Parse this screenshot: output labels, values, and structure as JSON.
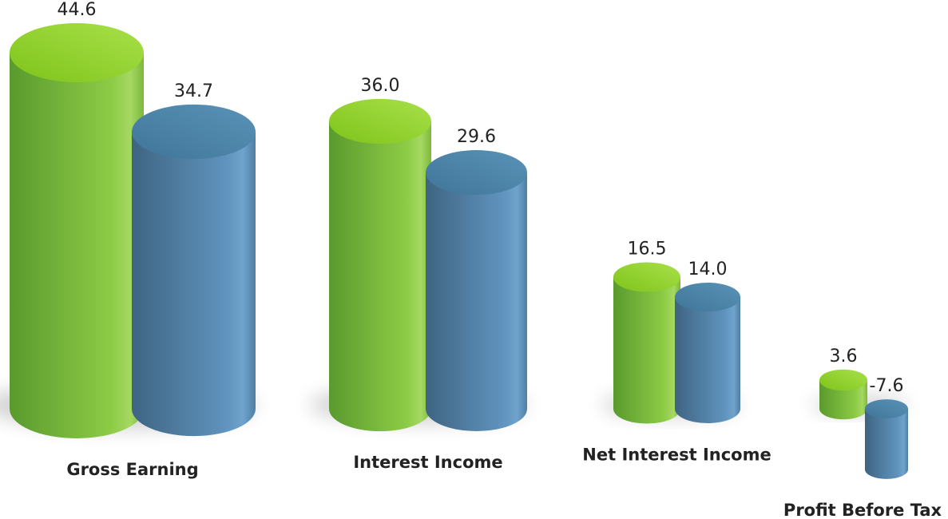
{
  "chart_data": {
    "type": "cylinder-bar",
    "categories": [
      "Gross Earning",
      "Interest Income",
      "Net Interest Income",
      "Profit Before Tax"
    ],
    "series": [
      {
        "color": "#7cc13a",
        "values": [
          44.6,
          36.0,
          16.5,
          3.6
        ],
        "value_labels": [
          "44.6",
          "36.0",
          "16.5",
          "3.6"
        ]
      },
      {
        "color": "#4f7fa6",
        "values": [
          34.7,
          29.6,
          14.0,
          -7.6
        ],
        "value_labels": [
          "34.7",
          "29.6",
          "14.0",
          "-7.6"
        ]
      }
    ],
    "ylim": [
      -10,
      50
    ]
  }
}
